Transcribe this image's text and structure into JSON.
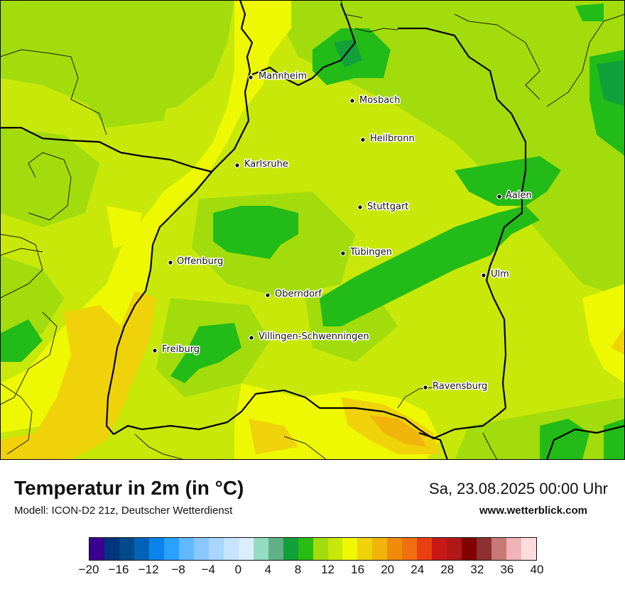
{
  "map": {
    "cities": [
      {
        "name": "Mannheim"
      },
      {
        "name": "Mosbach"
      },
      {
        "name": "Heilbronn"
      },
      {
        "name": "Karlsruhe"
      },
      {
        "name": "Aalen"
      },
      {
        "name": "Stuttgart"
      },
      {
        "name": "Tübingen"
      },
      {
        "name": "Offenburg"
      },
      {
        "name": "Ulm"
      },
      {
        "name": "Oberndorf"
      },
      {
        "name": "Villingen-Schwenningen"
      },
      {
        "name": "Freiburg"
      },
      {
        "name": "Ravensburg"
      }
    ],
    "colors": {
      "base_yellow_green": "#c8e80a",
      "light_green": "#a2dc0c",
      "green": "#22bb18",
      "dark_green": "#10a030",
      "yellow": "#eef800",
      "orange_yellow": "#f0d20a",
      "orange": "#f0b40a",
      "border": "#000000"
    }
  },
  "footer": {
    "title": "Temperatur in 2m (in °C)",
    "subtitle": "Modell: ICON-D2 21z, Deutscher Wetterdienst",
    "datetime": "Sa, 23.08.2025 00:00 Uhr",
    "website": "www.wetterblick.com"
  },
  "legend": {
    "colors": [
      "#3a0090",
      "#00357e",
      "#004a8c",
      "#0063b8",
      "#0a84e8",
      "#2aa0ff",
      "#62b8ff",
      "#88c8ff",
      "#a8d6ff",
      "#c6e4ff",
      "#daeeff",
      "#94dcc0",
      "#60b088",
      "#12a03a",
      "#28bc14",
      "#a2dc0c",
      "#c8e80a",
      "#eef800",
      "#f0d20a",
      "#f0b40a",
      "#f08c0a",
      "#f07010",
      "#e84010",
      "#c81818",
      "#b01818",
      "#800000",
      "#8c3030",
      "#c87878",
      "#f0b4b4",
      "#ffdcdc"
    ],
    "ticks": [
      "−20",
      "−16",
      "−12",
      "−8",
      "−4",
      "0",
      "4",
      "8",
      "12",
      "16",
      "20",
      "24",
      "28",
      "32",
      "36",
      "40"
    ]
  }
}
